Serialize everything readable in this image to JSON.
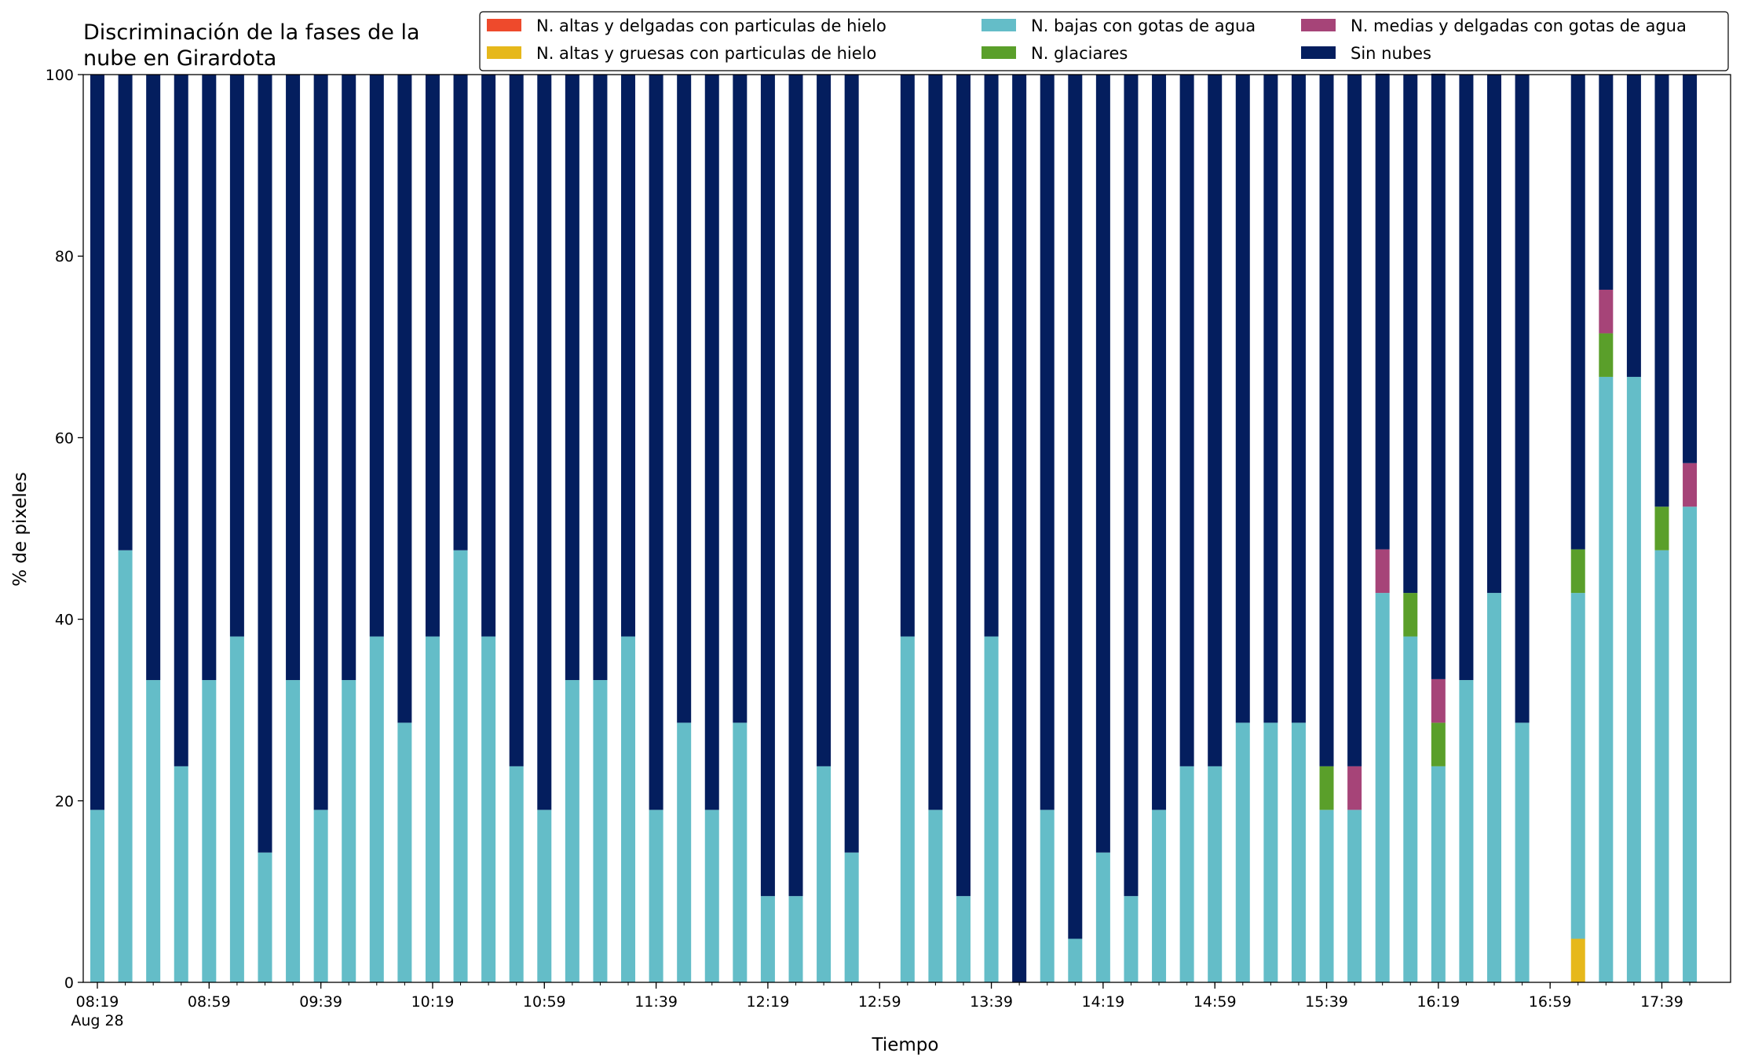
{
  "chart_data": {
    "type": "bar",
    "stacked": true,
    "title": "Discriminación de la fases de la\nnube en Girardota",
    "xlabel": "Tiempo",
    "ylabel": "% de pixeles",
    "ylim": [
      0,
      100
    ],
    "yticks": [
      0,
      20,
      40,
      60,
      80,
      100
    ],
    "grid": false,
    "legend_position": "top-right",
    "x_start_label": "08:19",
    "x_step_minutes": 10,
    "x_count": 58,
    "xtick_labels": [
      {
        "index": 0,
        "label": "08:19",
        "sublabel": "Aug 28"
      },
      {
        "index": 4,
        "label": "08:59"
      },
      {
        "index": 8,
        "label": "09:39"
      },
      {
        "index": 12,
        "label": "10:19"
      },
      {
        "index": 16,
        "label": "10:59"
      },
      {
        "index": 20,
        "label": "11:39"
      },
      {
        "index": 24,
        "label": "12:19"
      },
      {
        "index": 28,
        "label": "12:59"
      },
      {
        "index": 32,
        "label": "13:39"
      },
      {
        "index": 36,
        "label": "14:19"
      },
      {
        "index": 40,
        "label": "14:59"
      },
      {
        "index": 44,
        "label": "15:39"
      },
      {
        "index": 48,
        "label": "16:19"
      },
      {
        "index": 52,
        "label": "16:59"
      },
      {
        "index": 56,
        "label": "17:39"
      }
    ],
    "series": [
      {
        "name": "N. altas y delgadas con particulas de hielo",
        "color": "#ee4a2c",
        "values": [
          0,
          0,
          0,
          0,
          0,
          0,
          0,
          0,
          0,
          0,
          0,
          0,
          0,
          0,
          0,
          0,
          0,
          0,
          0,
          0,
          0,
          0,
          0,
          0,
          0,
          0,
          0,
          0,
          null,
          0,
          0,
          0,
          0,
          0,
          0,
          0,
          0,
          0,
          0,
          0,
          0,
          0,
          0,
          0,
          0,
          0,
          0,
          0,
          0,
          0,
          0,
          0,
          null,
          0,
          0,
          0,
          0,
          0
        ]
      },
      {
        "name": "N. altas y gruesas con particulas de hielo",
        "color": "#e6b81b",
        "values": [
          0,
          0,
          0,
          0,
          0,
          0,
          0,
          0,
          0,
          0,
          0,
          0,
          0,
          0,
          0,
          0,
          0,
          0,
          0,
          0,
          0,
          0,
          0,
          0,
          0,
          0,
          0,
          0,
          null,
          0,
          0,
          0,
          0,
          0,
          0,
          0,
          0,
          0,
          0,
          0,
          0,
          0,
          0,
          0,
          0,
          0,
          0,
          0,
          0,
          0,
          0,
          0,
          null,
          4.8,
          0,
          0,
          0,
          0
        ]
      },
      {
        "name": "N. bajas con gotas de agua",
        "color": "#64bdc8",
        "values": [
          19,
          47.6,
          33.3,
          23.8,
          33.3,
          38.1,
          14.3,
          33.3,
          19,
          33.3,
          38.1,
          28.6,
          38.1,
          47.6,
          38.1,
          23.8,
          19,
          33.3,
          33.3,
          38.1,
          19,
          28.6,
          19,
          28.6,
          9.5,
          9.5,
          23.8,
          14.3,
          null,
          38.1,
          19,
          9.5,
          38.1,
          0,
          19,
          4.8,
          14.3,
          9.5,
          19,
          23.8,
          23.8,
          28.6,
          28.6,
          28.6,
          19,
          19,
          42.9,
          38.1,
          23.8,
          33.3,
          42.9,
          28.6,
          null,
          38.1,
          66.7,
          66.7,
          47.6,
          52.4
        ]
      },
      {
        "name": "N. glaciares",
        "color": "#5a9f2a",
        "values": [
          0,
          0,
          0,
          0,
          0,
          0,
          0,
          0,
          0,
          0,
          0,
          0,
          0,
          0,
          0,
          0,
          0,
          0,
          0,
          0,
          0,
          0,
          0,
          0,
          0,
          0,
          0,
          0,
          null,
          0,
          0,
          0,
          0,
          0,
          0,
          0,
          0,
          0,
          0,
          0,
          0,
          0,
          0,
          0,
          4.8,
          0,
          0,
          4.8,
          4.8,
          0,
          0,
          0,
          null,
          4.8,
          4.8,
          0,
          4.8,
          0
        ]
      },
      {
        "name": "N. medias y delgadas con gotas de agua",
        "color": "#a64478",
        "values": [
          0,
          0,
          0,
          0,
          0,
          0,
          0,
          0,
          0,
          0,
          0,
          0,
          0,
          0,
          0,
          0,
          0,
          0,
          0,
          0,
          0,
          0,
          0,
          0,
          0,
          0,
          0,
          0,
          null,
          0,
          0,
          0,
          0,
          0,
          0,
          0,
          0,
          0,
          0,
          0,
          0,
          0,
          0,
          0,
          0,
          4.8,
          4.8,
          0,
          4.8,
          0,
          0,
          0,
          null,
          0,
          4.8,
          0,
          0,
          4.8
        ]
      },
      {
        "name": "Sin nubes",
        "color": "#041e5e",
        "values": [
          81,
          52.4,
          66.7,
          76.2,
          66.7,
          61.9,
          85.7,
          66.7,
          81,
          66.7,
          61.9,
          71.4,
          61.9,
          52.4,
          61.9,
          76.2,
          81,
          66.7,
          66.7,
          61.9,
          81,
          71.4,
          81,
          71.4,
          90.5,
          90.5,
          76.2,
          85.7,
          null,
          61.9,
          81,
          90.5,
          61.9,
          100,
          81,
          95.2,
          85.7,
          90.5,
          81,
          76.2,
          76.2,
          71.4,
          71.4,
          71.4,
          76.2,
          76.2,
          52.4,
          57.1,
          66.7,
          66.7,
          57.1,
          71.4,
          null,
          52.3,
          23.7,
          33.3,
          47.6,
          42.8
        ]
      }
    ]
  }
}
